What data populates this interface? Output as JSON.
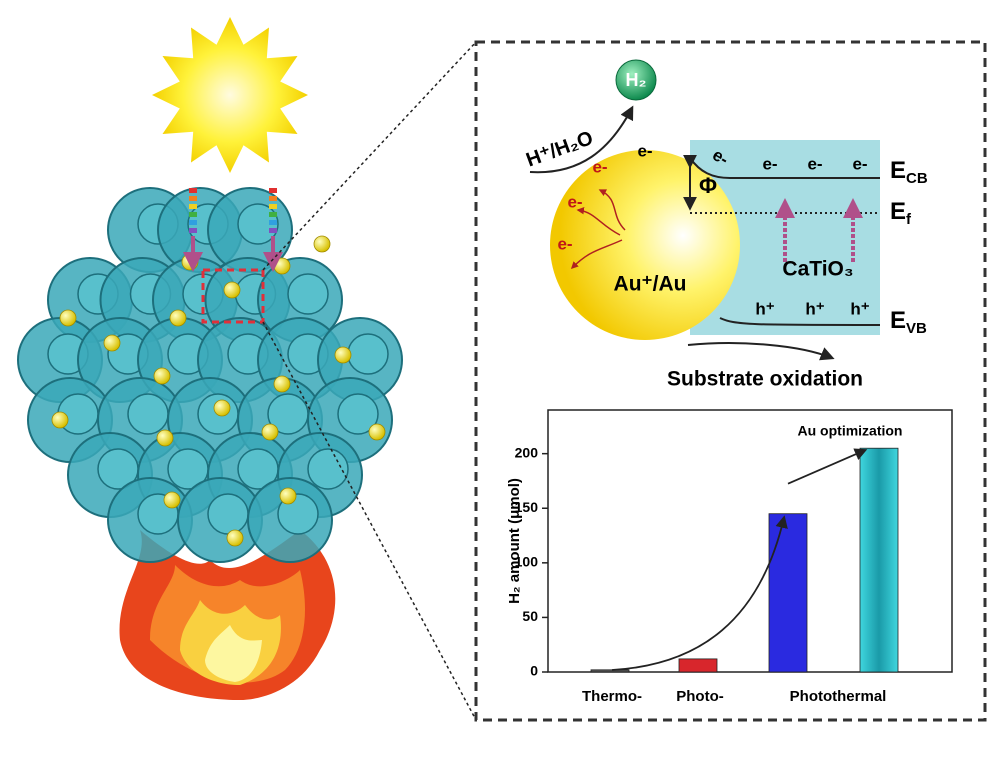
{
  "diagram": {
    "h2_bubble": "H₂",
    "reactant": "H⁺/H₂O",
    "electrons_metal": [
      "e-",
      "e-",
      "e-",
      "e-"
    ],
    "electrons_cb": [
      "e-",
      "e-",
      "e-",
      "e-"
    ],
    "barrier": "Φ",
    "levels": [
      {
        "main": "E",
        "sub": "CB"
      },
      {
        "main": "E",
        "sub": "f"
      },
      {
        "main": "E",
        "sub": "VB"
      }
    ],
    "semiconductor": "CaTiO₃",
    "metal": "Au⁺/Au",
    "holes": [
      "h⁺",
      "h⁺",
      "h⁺"
    ],
    "oxidation": "Substrate oxidation"
  },
  "chart_data": {
    "type": "bar",
    "annotation": "Au optimization",
    "ylabel": "H₂ amount (μmol)",
    "categories": [
      "Thermo-",
      "Photo-",
      "Photothermal",
      null
    ],
    "values": [
      2,
      12,
      145,
      205
    ],
    "colors": [
      "#555555",
      "#d8262c",
      "#2a2ae0",
      "#2fc4cc"
    ],
    "ylim": [
      0,
      240
    ],
    "yticks": [
      0,
      50,
      100,
      150,
      200
    ]
  }
}
